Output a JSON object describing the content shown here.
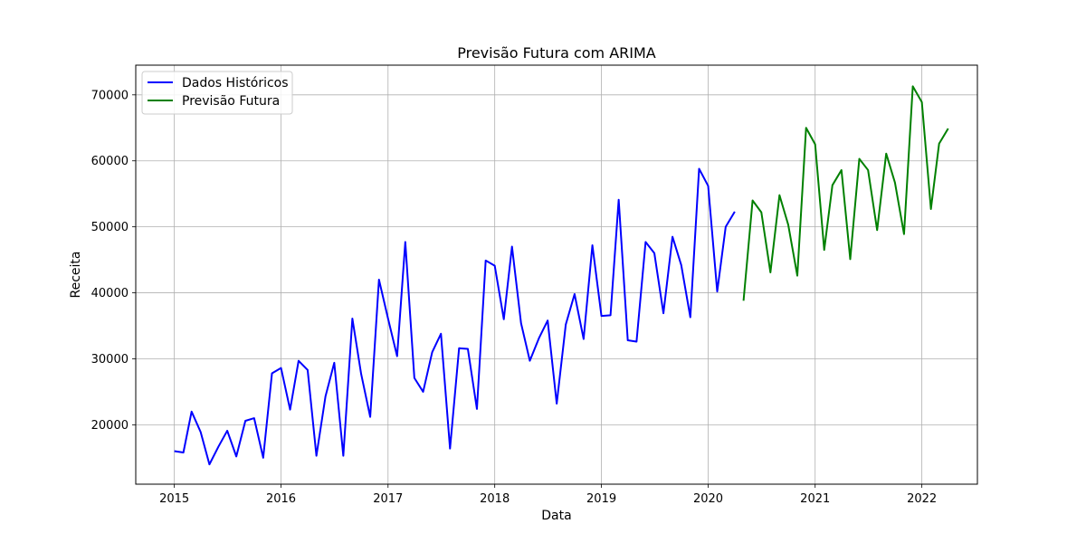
{
  "chart_data": {
    "type": "line",
    "title": "Previsão Futura com ARIMA",
    "xlabel": "Data",
    "ylabel": "Receita",
    "xlim": [
      "2014-08-22",
      "2022-07-10"
    ],
    "ylim": [
      11000,
      74500
    ],
    "grid": true,
    "legend_position": "top-left",
    "x_ticks": [
      "2015",
      "2016",
      "2017",
      "2018",
      "2019",
      "2020",
      "2021",
      "2022"
    ],
    "y_ticks": [
      20000,
      30000,
      40000,
      50000,
      60000,
      70000
    ],
    "y_tick_labels": [
      "20000",
      "30000",
      "40000",
      "50000",
      "60000",
      "70000"
    ],
    "series": [
      {
        "name": "Dados Históricos",
        "color": "#0000ff",
        "start": "2015-01",
        "values": [
          16000,
          15800,
          22000,
          18900,
          14000,
          16700,
          19100,
          15200,
          20600,
          21000,
          15000,
          27800,
          28600,
          22300,
          29700,
          28300,
          15300,
          24300,
          29400,
          15300,
          36100,
          27700,
          21200,
          42000,
          36100,
          30400,
          47700,
          27100,
          25000,
          31000,
          33800,
          16400,
          31600,
          31500,
          22400,
          44900,
          44100,
          36000,
          47000,
          35400,
          29700,
          33100,
          35800,
          23200,
          35200,
          39800,
          33000,
          47200,
          36500,
          36600,
          54100,
          32800,
          32600,
          47700,
          46000,
          36900,
          48500,
          44200,
          36300,
          58800,
          56200,
          40200,
          50000,
          52300
        ]
      },
      {
        "name": "Previsão Futura",
        "color": "#008000",
        "start": "2020-05",
        "values": [
          38800,
          54000,
          52200,
          43100,
          54800,
          50300,
          42600,
          65000,
          62500,
          46500,
          56300,
          58600,
          45100,
          60300,
          58600,
          49500,
          61100,
          56700,
          48900,
          71300,
          68900,
          52700,
          62600,
          64900
        ]
      }
    ]
  }
}
